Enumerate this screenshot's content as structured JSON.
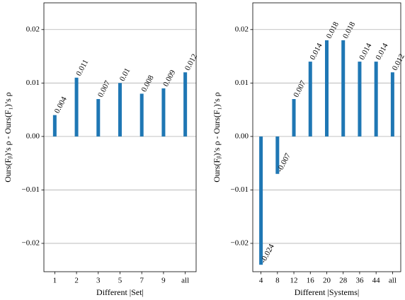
{
  "chart_data": [
    {
      "type": "bar",
      "y_label": "Ours(Fᵦ)’s ρ - Ours(F₁)’s ρ",
      "x_label": "Different |Set|",
      "categories": [
        "1",
        "2",
        "3",
        "5",
        "7",
        "9",
        "all"
      ],
      "values": [
        0.004,
        0.011,
        0.007,
        0.01,
        0.008,
        0.009,
        0.012
      ],
      "color": "#1f77b4",
      "ylim": [
        -0.0253,
        0.025
      ],
      "yticks": [
        {
          "value": -0.02,
          "label": "−0.02"
        },
        {
          "value": -0.01,
          "label": "−0.01"
        },
        {
          "value": 0,
          "label": "0.00"
        },
        0.01,
        0.02
      ],
      "grid": true
    },
    {
      "type": "bar",
      "y_label": "Ours(Fᵦ)’s ρ - Ours(F₁)’s ρ",
      "x_label": "Different |Systems|",
      "categories": [
        "4",
        "8",
        "12",
        "16",
        "20",
        "28",
        "36",
        "44",
        "all"
      ],
      "values": [
        -0.024,
        -0.007,
        0.007,
        0.014,
        0.018,
        0.018,
        0.014,
        0.014,
        0.012
      ],
      "color": "#1f77b4",
      "ylim": [
        -0.0253,
        0.025
      ],
      "yticks": [
        {
          "value": -0.02,
          "label": "−0.02"
        },
        {
          "value": -0.01,
          "label": "−0.01"
        },
        {
          "value": 0,
          "label": "0.00"
        },
        0.01,
        0.02
      ],
      "grid": true
    }
  ]
}
